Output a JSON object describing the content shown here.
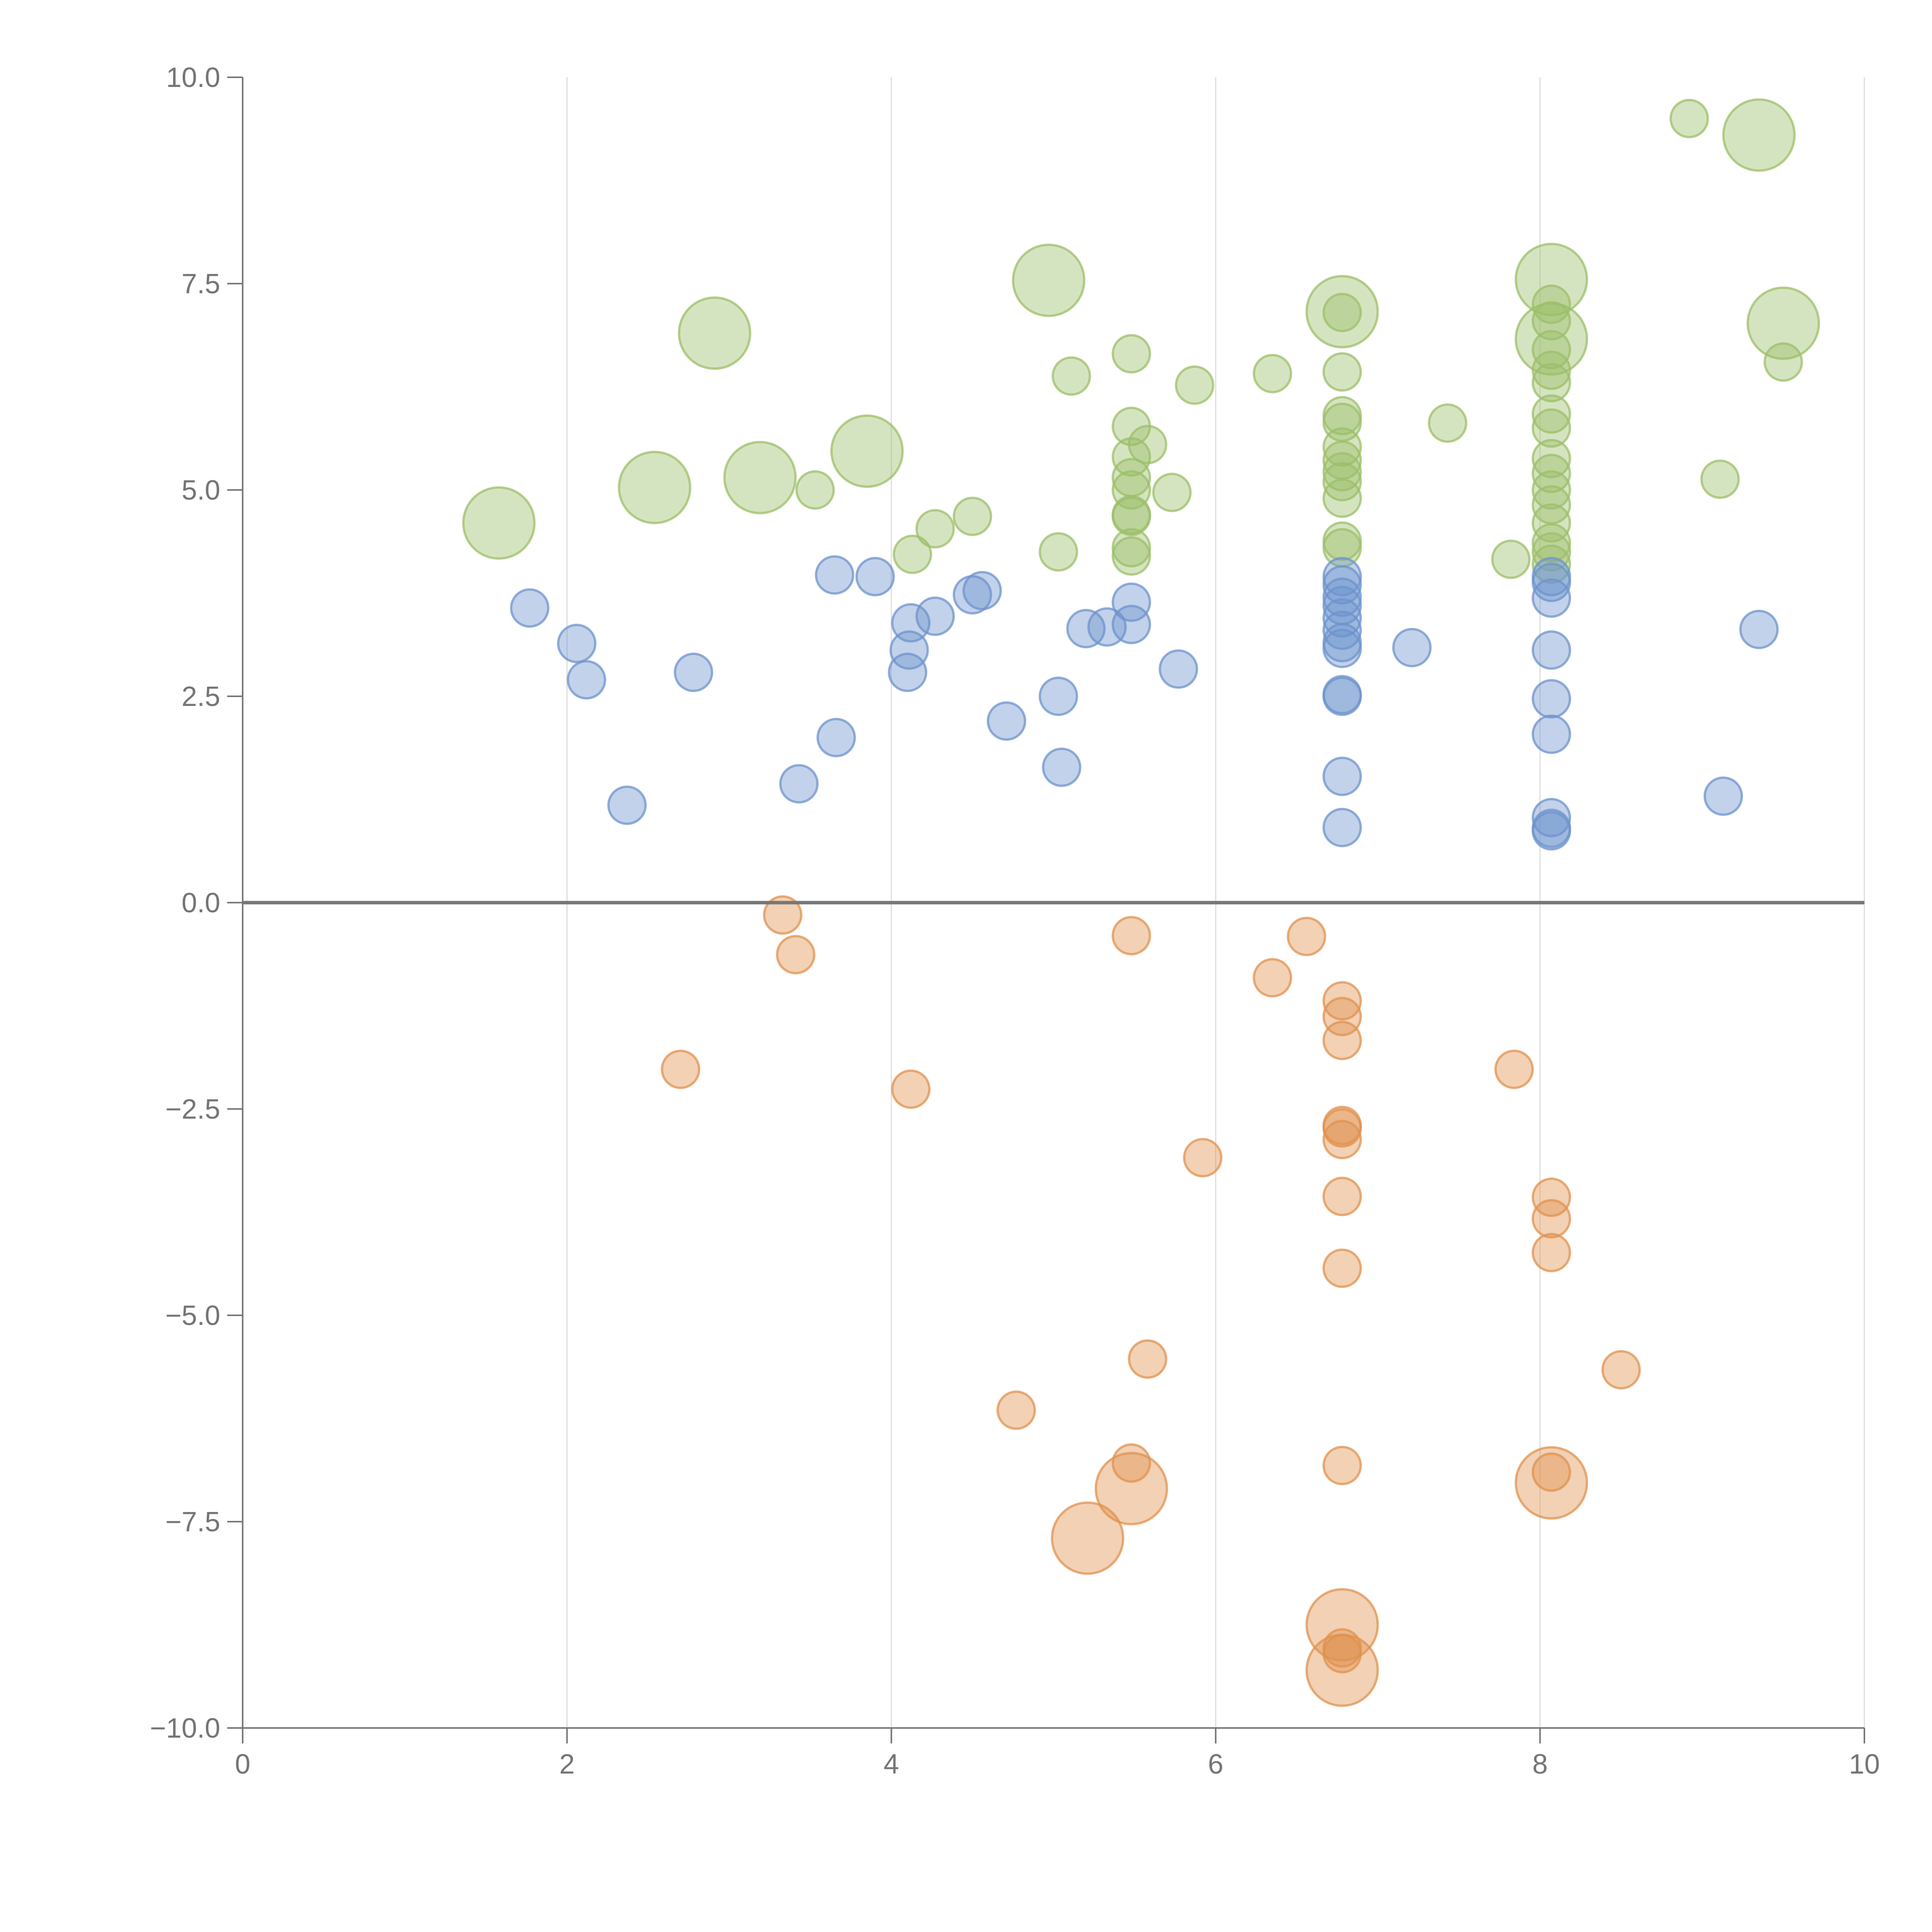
{
  "chart_data": {
    "type": "scatter",
    "title": "",
    "xlabel": "",
    "ylabel": "",
    "xlim": [
      0,
      10
    ],
    "ylim": [
      -10,
      10
    ],
    "x_ticks": [
      "0",
      "2",
      "4",
      "6",
      "8",
      "10"
    ],
    "y_ticks": [
      "10.0",
      "7.5",
      "5.0",
      "2.5",
      "0.0",
      "−2.5",
      "−5.0",
      "−7.5",
      "−10.0"
    ],
    "x_tick_values": [
      0,
      2,
      4,
      6,
      8,
      10
    ],
    "y_tick_values": [
      10,
      7.5,
      5,
      2.5,
      0,
      -2.5,
      -5,
      -7.5,
      -10
    ],
    "grid": "vertical",
    "zero_line": true,
    "size_encoding": "small bubbles = 1, large bubbles = 3",
    "colors": {
      "green": "#9cbf6a",
      "blue": "#6e93cc",
      "orange": "#e0914f"
    },
    "series": [
      {
        "color_key": "green",
        "points": [
          [
            1.58,
            4.6,
            3
          ],
          [
            2.91,
            6.9,
            3
          ],
          [
            2.54,
            5.03,
            3
          ],
          [
            3.19,
            5.15,
            3
          ],
          [
            3.85,
            5.47,
            3
          ],
          [
            4.97,
            7.54,
            3
          ],
          [
            6.78,
            7.16,
            3
          ],
          [
            8.07,
            7.55,
            3
          ],
          [
            8.07,
            6.83,
            3
          ],
          [
            9.35,
            9.3,
            3
          ],
          [
            9.5,
            7.02,
            3
          ],
          [
            3.53,
            5.0,
            1
          ],
          [
            4.13,
            4.22,
            1
          ],
          [
            4.27,
            4.53,
            1
          ],
          [
            4.5,
            4.68,
            1
          ],
          [
            5.03,
            4.25,
            1
          ],
          [
            5.11,
            6.38,
            1
          ],
          [
            5.48,
            6.65,
            1
          ],
          [
            5.48,
            5.77,
            1
          ],
          [
            5.58,
            5.55,
            1
          ],
          [
            5.48,
            5.4,
            1
          ],
          [
            5.48,
            5.15,
            1
          ],
          [
            5.48,
            5.0,
            1
          ],
          [
            5.48,
            4.7,
            1
          ],
          [
            5.48,
            4.68,
            1
          ],
          [
            5.48,
            4.3,
            1
          ],
          [
            5.48,
            4.2,
            1
          ],
          [
            5.73,
            4.97,
            1
          ],
          [
            5.87,
            6.27,
            1
          ],
          [
            6.35,
            6.41,
            1
          ],
          [
            6.78,
            6.43,
            1
          ],
          [
            6.78,
            5.9,
            1
          ],
          [
            6.78,
            5.82,
            1
          ],
          [
            6.78,
            5.52,
            1
          ],
          [
            6.78,
            5.36,
            1
          ],
          [
            6.78,
            5.22,
            1
          ],
          [
            6.78,
            5.1,
            1
          ],
          [
            6.78,
            4.9,
            1
          ],
          [
            6.78,
            4.38,
            1
          ],
          [
            6.78,
            4.3,
            1
          ],
          [
            6.78,
            7.15,
            1
          ],
          [
            7.43,
            5.81,
            1
          ],
          [
            7.82,
            4.16,
            1
          ],
          [
            8.07,
            7.25,
            1
          ],
          [
            8.07,
            7.05,
            1
          ],
          [
            8.07,
            6.7,
            1
          ],
          [
            8.07,
            6.45,
            1
          ],
          [
            8.07,
            6.3,
            1
          ],
          [
            8.07,
            5.92,
            1
          ],
          [
            8.07,
            5.75,
            1
          ],
          [
            8.07,
            5.38,
            1
          ],
          [
            8.07,
            5.2,
            1
          ],
          [
            8.07,
            5.0,
            1
          ],
          [
            8.07,
            4.82,
            1
          ],
          [
            8.07,
            4.6,
            1
          ],
          [
            8.07,
            4.36,
            1
          ],
          [
            8.07,
            4.25,
            1
          ],
          [
            8.07,
            4.1,
            1
          ],
          [
            8.92,
            9.5,
            1
          ],
          [
            9.11,
            5.13,
            1
          ],
          [
            9.5,
            6.55,
            1
          ]
        ]
      },
      {
        "color_key": "blue",
        "points": [
          [
            1.77,
            3.57,
            1
          ],
          [
            2.06,
            3.14,
            1
          ],
          [
            2.12,
            2.7,
            1
          ],
          [
            2.37,
            1.18,
            1
          ],
          [
            2.78,
            2.79,
            1
          ],
          [
            3.43,
            1.44,
            1
          ],
          [
            3.65,
            3.97,
            1
          ],
          [
            3.66,
            2.0,
            1
          ],
          [
            3.9,
            3.95,
            1
          ],
          [
            4.1,
            2.79,
            1
          ],
          [
            4.11,
            3.06,
            1
          ],
          [
            4.12,
            3.39,
            1
          ],
          [
            4.27,
            3.47,
            1
          ],
          [
            4.5,
            3.73,
            1
          ],
          [
            4.56,
            3.78,
            1
          ],
          [
            4.71,
            2.2,
            1
          ],
          [
            5.03,
            2.5,
            1
          ],
          [
            5.05,
            1.64,
            1
          ],
          [
            5.2,
            3.32,
            1
          ],
          [
            5.33,
            3.34,
            1
          ],
          [
            5.48,
            3.64,
            1
          ],
          [
            5.48,
            3.37,
            1
          ],
          [
            5.77,
            2.83,
            1
          ],
          [
            6.78,
            3.95,
            1
          ],
          [
            6.78,
            3.85,
            1
          ],
          [
            6.78,
            3.7,
            1
          ],
          [
            6.78,
            3.6,
            1
          ],
          [
            6.78,
            3.45,
            1
          ],
          [
            6.78,
            3.3,
            1
          ],
          [
            6.78,
            3.15,
            1
          ],
          [
            6.78,
            3.08,
            1
          ],
          [
            6.78,
            2.52,
            1
          ],
          [
            6.78,
            2.5,
            1
          ],
          [
            6.78,
            1.53,
            1
          ],
          [
            6.78,
            0.91,
            1
          ],
          [
            7.21,
            3.09,
            1
          ],
          [
            8.07,
            3.95,
            1
          ],
          [
            8.07,
            3.88,
            1
          ],
          [
            8.07,
            3.69,
            1
          ],
          [
            8.07,
            3.06,
            1
          ],
          [
            8.07,
            2.47,
            1
          ],
          [
            8.07,
            2.04,
            1
          ],
          [
            8.07,
            1.03,
            1
          ],
          [
            8.07,
            0.9,
            1
          ],
          [
            8.07,
            0.87,
            1
          ],
          [
            9.13,
            1.29,
            1
          ],
          [
            9.35,
            3.31,
            1
          ]
        ]
      },
      {
        "color_key": "orange",
        "points": [
          [
            2.7,
            -2.02,
            1
          ],
          [
            3.33,
            -0.15,
            1
          ],
          [
            3.41,
            -0.63,
            1
          ],
          [
            4.12,
            -2.26,
            1
          ],
          [
            4.77,
            -6.15,
            1
          ],
          [
            5.48,
            -0.4,
            1
          ],
          [
            5.48,
            -6.79,
            1
          ],
          [
            5.58,
            -5.53,
            1
          ],
          [
            5.92,
            -3.09,
            1
          ],
          [
            6.35,
            -0.91,
            1
          ],
          [
            6.56,
            -0.41,
            1
          ],
          [
            6.78,
            -1.19,
            1
          ],
          [
            6.78,
            -1.38,
            1
          ],
          [
            6.78,
            -1.67,
            1
          ],
          [
            6.78,
            -2.7,
            1
          ],
          [
            6.78,
            -2.73,
            1
          ],
          [
            6.78,
            -2.87,
            1
          ],
          [
            6.78,
            -3.56,
            1
          ],
          [
            6.78,
            -4.43,
            1
          ],
          [
            6.78,
            -6.82,
            1
          ],
          [
            6.78,
            -9.03,
            1
          ],
          [
            6.78,
            -9.1,
            1
          ],
          [
            7.84,
            -2.02,
            1
          ],
          [
            8.07,
            -3.57,
            1
          ],
          [
            8.07,
            -3.83,
            1
          ],
          [
            8.07,
            -4.24,
            1
          ],
          [
            8.07,
            -6.9,
            1
          ],
          [
            8.5,
            -5.66,
            1
          ],
          [
            5.21,
            -7.7,
            3
          ],
          [
            5.48,
            -7.1,
            3
          ],
          [
            6.78,
            -8.75,
            3
          ],
          [
            6.78,
            -9.3,
            3
          ],
          [
            8.07,
            -7.03,
            3
          ]
        ]
      }
    ]
  }
}
